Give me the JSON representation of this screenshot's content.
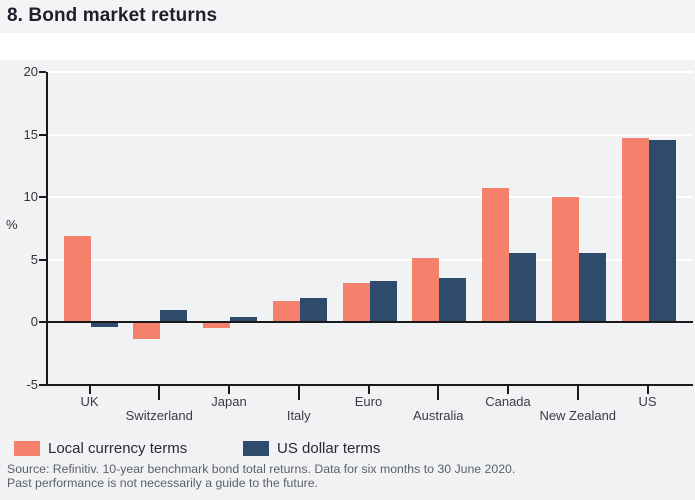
{
  "title": "8. Bond market returns",
  "ylabel": "%",
  "legend": {
    "items": [
      {
        "label": "Local currency terms",
        "color": "#f5806b"
      },
      {
        "label": "US dollar terms",
        "color": "#2e4a6c"
      }
    ]
  },
  "source": {
    "line1": "Source: Refinitiv. 10-year benchmark bond total returns. Data for six months to 30 June 2020.",
    "line2": "Past performance is not necessarily a guide to the future."
  },
  "colors": {
    "local_currency": "#f5806b",
    "us_dollar": "#2e4a6c",
    "plot_background": "#f1f2f4",
    "axis": "#1a1a1a",
    "gridline": "#ffffff"
  },
  "chart_data": {
    "type": "bar",
    "title": "8. Bond market returns",
    "xlabel": "",
    "ylabel": "%",
    "ylim": [
      -5,
      20
    ],
    "yticks": [
      20,
      15,
      10,
      5,
      0,
      -5
    ],
    "gridlines_at": [
      20,
      15,
      10,
      5
    ],
    "grid": "horizontal",
    "legend_position": "bottom",
    "categories": [
      "UK",
      "Switzerland",
      "Japan",
      "Italy",
      "Euro",
      "Australia",
      "Canada",
      "New Zealand",
      "US"
    ],
    "label_rows": [
      1,
      2,
      1,
      2,
      1,
      2,
      1,
      2,
      1
    ],
    "series": [
      {
        "name": "Local currency terms",
        "color": "#f5806b",
        "values": [
          6.9,
          -1.3,
          -0.4,
          1.7,
          3.1,
          5.1,
          10.7,
          10.0,
          14.7
        ]
      },
      {
        "name": "US dollar terms",
        "color": "#2e4a6c",
        "values": [
          -0.3,
          1.0,
          0.4,
          1.9,
          3.3,
          3.5,
          5.5,
          5.5,
          14.6
        ]
      }
    ]
  }
}
